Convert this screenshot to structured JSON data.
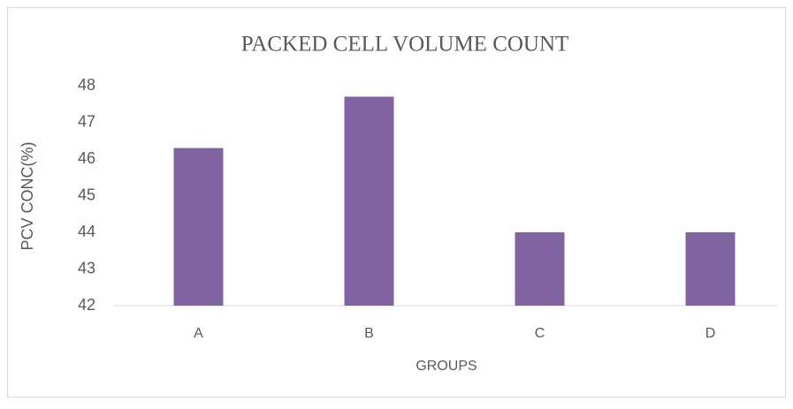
{
  "chart_data": {
    "type": "bar",
    "title": "PACKED CELL VOLUME COUNT",
    "x_label": "GROUPS",
    "y_label": "PCV CONC(%)",
    "categories": [
      "A",
      "B",
      "C",
      "D"
    ],
    "values": [
      46.3,
      47.7,
      44,
      44
    ],
    "color": "#8064a2",
    "ylim": [
      42,
      48
    ],
    "yticks": [
      42,
      43,
      44,
      45,
      46,
      47,
      48
    ],
    "grid": false
  }
}
